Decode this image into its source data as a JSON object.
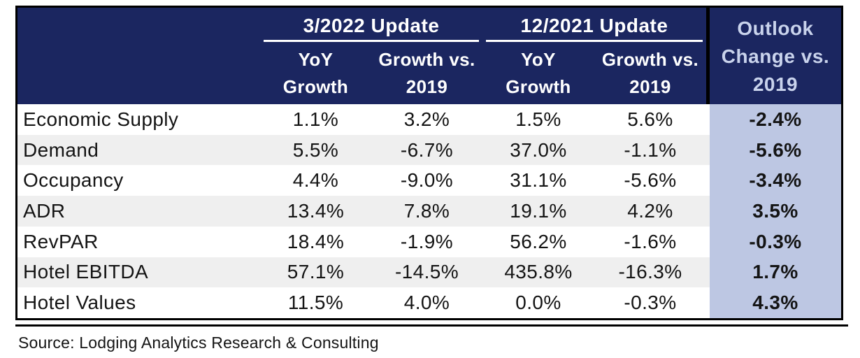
{
  "chart_data": {
    "type": "table",
    "header": {
      "row_label_column": "",
      "groups": [
        {
          "label": "3/2022 Update",
          "subcolumns": [
            [
              "YoY",
              "Growth"
            ],
            [
              "Growth vs.",
              "2019"
            ]
          ]
        },
        {
          "label": "12/2021 Update",
          "subcolumns": [
            [
              "YoY",
              "Growth"
            ],
            [
              "Growth vs.",
              "2019"
            ]
          ]
        }
      ],
      "outlook_column": [
        "Outlook",
        "Change vs.",
        "2019"
      ]
    },
    "rows": [
      {
        "label": "Economic Supply",
        "values": [
          "1.1%",
          "3.2%",
          "1.5%",
          "5.6%"
        ],
        "outlook": "-2.4%"
      },
      {
        "label": "Demand",
        "values": [
          "5.5%",
          "-6.7%",
          "37.0%",
          "-1.1%"
        ],
        "outlook": "-5.6%"
      },
      {
        "label": "Occupancy",
        "values": [
          "4.4%",
          "-9.0%",
          "31.1%",
          "-5.6%"
        ],
        "outlook": "-3.4%"
      },
      {
        "label": "ADR",
        "values": [
          "13.4%",
          "7.8%",
          "19.1%",
          "4.2%"
        ],
        "outlook": "3.5%"
      },
      {
        "label": "RevPAR",
        "values": [
          "18.4%",
          "-1.9%",
          "56.2%",
          "-1.6%"
        ],
        "outlook": "-0.3%"
      },
      {
        "label": "Hotel EBITDA",
        "values": [
          "57.1%",
          "-14.5%",
          "435.8%",
          "-16.3%"
        ],
        "outlook": "1.7%"
      },
      {
        "label": "Hotel Values",
        "values": [
          "11.5%",
          "4.0%",
          "0.0%",
          "-0.3%"
        ],
        "outlook": "4.3%"
      }
    ],
    "source": "Source: Lodging Analytics Research & Consulting"
  },
  "colors": {
    "header_navy": "#1B2660",
    "header_text": "#FFFFFF",
    "outlook_header_text": "#C9D3EC",
    "outlook_fill": "#BDC7E3",
    "stripe_gray": "#EFEFEF",
    "body_text": "#141414",
    "border_black": "#000000"
  }
}
